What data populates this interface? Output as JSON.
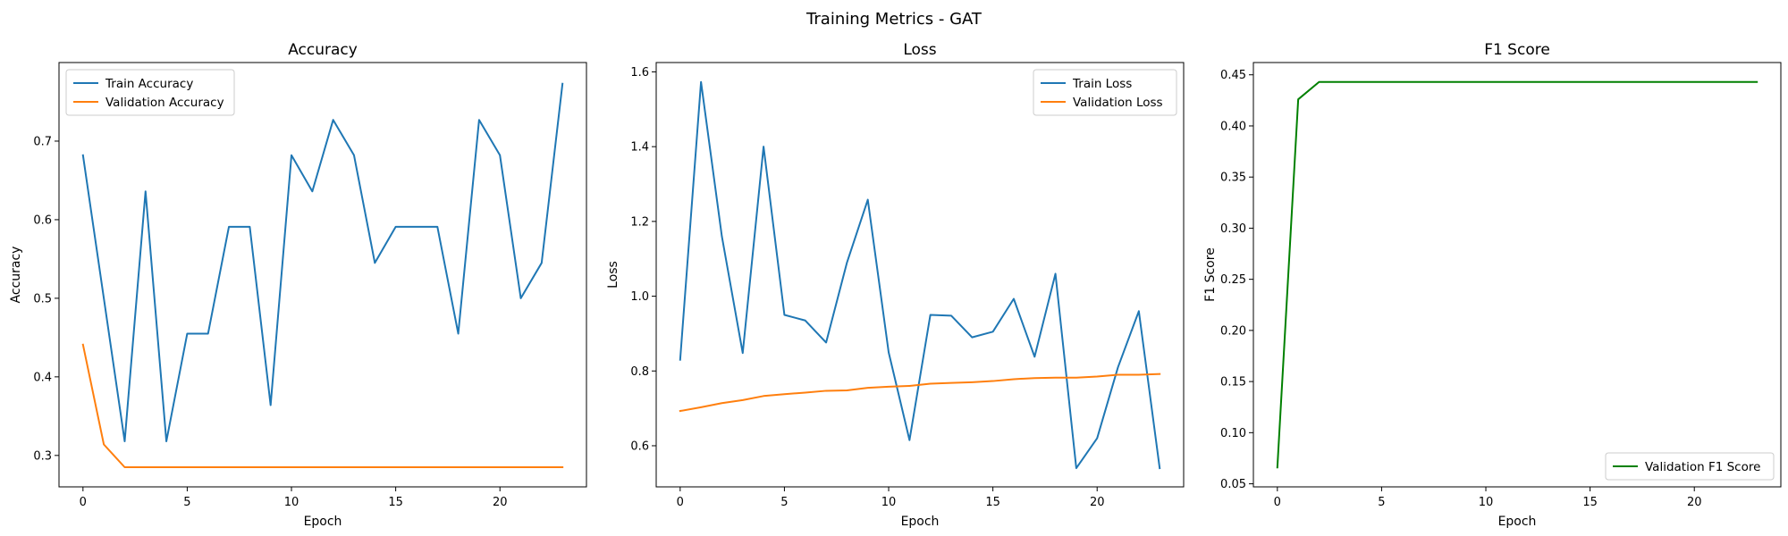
{
  "figure": {
    "suptitle": "Training Metrics - GAT"
  },
  "chart_data": [
    {
      "type": "line",
      "title": "Accuracy",
      "xlabel": "Epoch",
      "ylabel": "Accuracy",
      "xlim": [
        -1.15,
        24.15
      ],
      "ylim": [
        0.26,
        0.8
      ],
      "xticks": [
        0,
        5,
        10,
        15,
        20
      ],
      "yticks": [
        0.3,
        0.4,
        0.5,
        0.6,
        0.7
      ],
      "tick_decimals": 1,
      "legend": "top-left",
      "grid": false,
      "x": [
        0,
        1,
        2,
        3,
        4,
        5,
        6,
        7,
        8,
        9,
        10,
        11,
        12,
        13,
        14,
        15,
        16,
        17,
        18,
        19,
        20,
        21,
        22,
        23
      ],
      "series": [
        {
          "name": "Train Accuracy",
          "color": "#1f77b4",
          "values": [
            0.682,
            0.5,
            0.318,
            0.636,
            0.318,
            0.455,
            0.455,
            0.591,
            0.591,
            0.364,
            0.682,
            0.636,
            0.727,
            0.682,
            0.545,
            0.591,
            0.591,
            0.591,
            0.455,
            0.727,
            0.682,
            0.5,
            0.545,
            0.773
          ]
        },
        {
          "name": "Validation Accuracy",
          "color": "#ff7f0e",
          "values": [
            0.441,
            0.314,
            0.285,
            0.285,
            0.285,
            0.285,
            0.285,
            0.285,
            0.285,
            0.285,
            0.285,
            0.285,
            0.285,
            0.285,
            0.285,
            0.285,
            0.285,
            0.285,
            0.285,
            0.285,
            0.285,
            0.285,
            0.285,
            0.285
          ]
        }
      ]
    },
    {
      "type": "line",
      "title": "Loss",
      "xlabel": "Epoch",
      "ylabel": "Loss",
      "xlim": [
        -1.15,
        24.15
      ],
      "ylim": [
        0.49,
        1.625
      ],
      "xticks": [
        0,
        5,
        10,
        15,
        20
      ],
      "yticks": [
        0.6,
        0.8,
        1.0,
        1.2,
        1.4,
        1.6
      ],
      "tick_decimals": 1,
      "legend": "top-right",
      "grid": false,
      "x": [
        0,
        1,
        2,
        3,
        4,
        5,
        6,
        7,
        8,
        9,
        10,
        11,
        12,
        13,
        14,
        15,
        16,
        17,
        18,
        19,
        20,
        21,
        22,
        23
      ],
      "series": [
        {
          "name": "Train Loss",
          "color": "#1f77b4",
          "values": [
            0.83,
            1.573,
            1.16,
            0.848,
            1.4,
            0.95,
            0.935,
            0.876,
            1.09,
            1.258,
            0.85,
            0.615,
            0.95,
            0.948,
            0.89,
            0.905,
            0.993,
            0.838,
            1.06,
            0.54,
            0.62,
            0.81,
            0.96,
            0.54
          ]
        },
        {
          "name": "Validation Loss",
          "color": "#ff7f0e",
          "values": [
            0.693,
            0.703,
            0.714,
            0.722,
            0.733,
            0.738,
            0.742,
            0.747,
            0.748,
            0.755,
            0.758,
            0.76,
            0.766,
            0.768,
            0.77,
            0.773,
            0.778,
            0.781,
            0.782,
            0.782,
            0.785,
            0.79,
            0.79,
            0.792
          ]
        }
      ]
    },
    {
      "type": "line",
      "title": "F1 Score",
      "xlabel": "Epoch",
      "ylabel": "F1 Score",
      "xlim": [
        -1.15,
        24.15
      ],
      "ylim": [
        0.047,
        0.462
      ],
      "xticks": [
        0,
        5,
        10,
        15,
        20
      ],
      "yticks": [
        0.05,
        0.1,
        0.15,
        0.2,
        0.25,
        0.3,
        0.35,
        0.4,
        0.45
      ],
      "tick_decimals": 2,
      "legend": "bottom-right",
      "grid": false,
      "x": [
        0,
        1,
        2,
        3,
        4,
        5,
        6,
        7,
        8,
        9,
        10,
        11,
        12,
        13,
        14,
        15,
        16,
        17,
        18,
        19,
        20,
        21,
        22,
        23
      ],
      "series": [
        {
          "name": "Validation F1 Score",
          "color": "#008000",
          "values": [
            0.066,
            0.426,
            0.443,
            0.443,
            0.443,
            0.443,
            0.443,
            0.443,
            0.443,
            0.443,
            0.443,
            0.443,
            0.443,
            0.443,
            0.443,
            0.443,
            0.443,
            0.443,
            0.443,
            0.443,
            0.443,
            0.443,
            0.443,
            0.443
          ]
        }
      ]
    }
  ]
}
